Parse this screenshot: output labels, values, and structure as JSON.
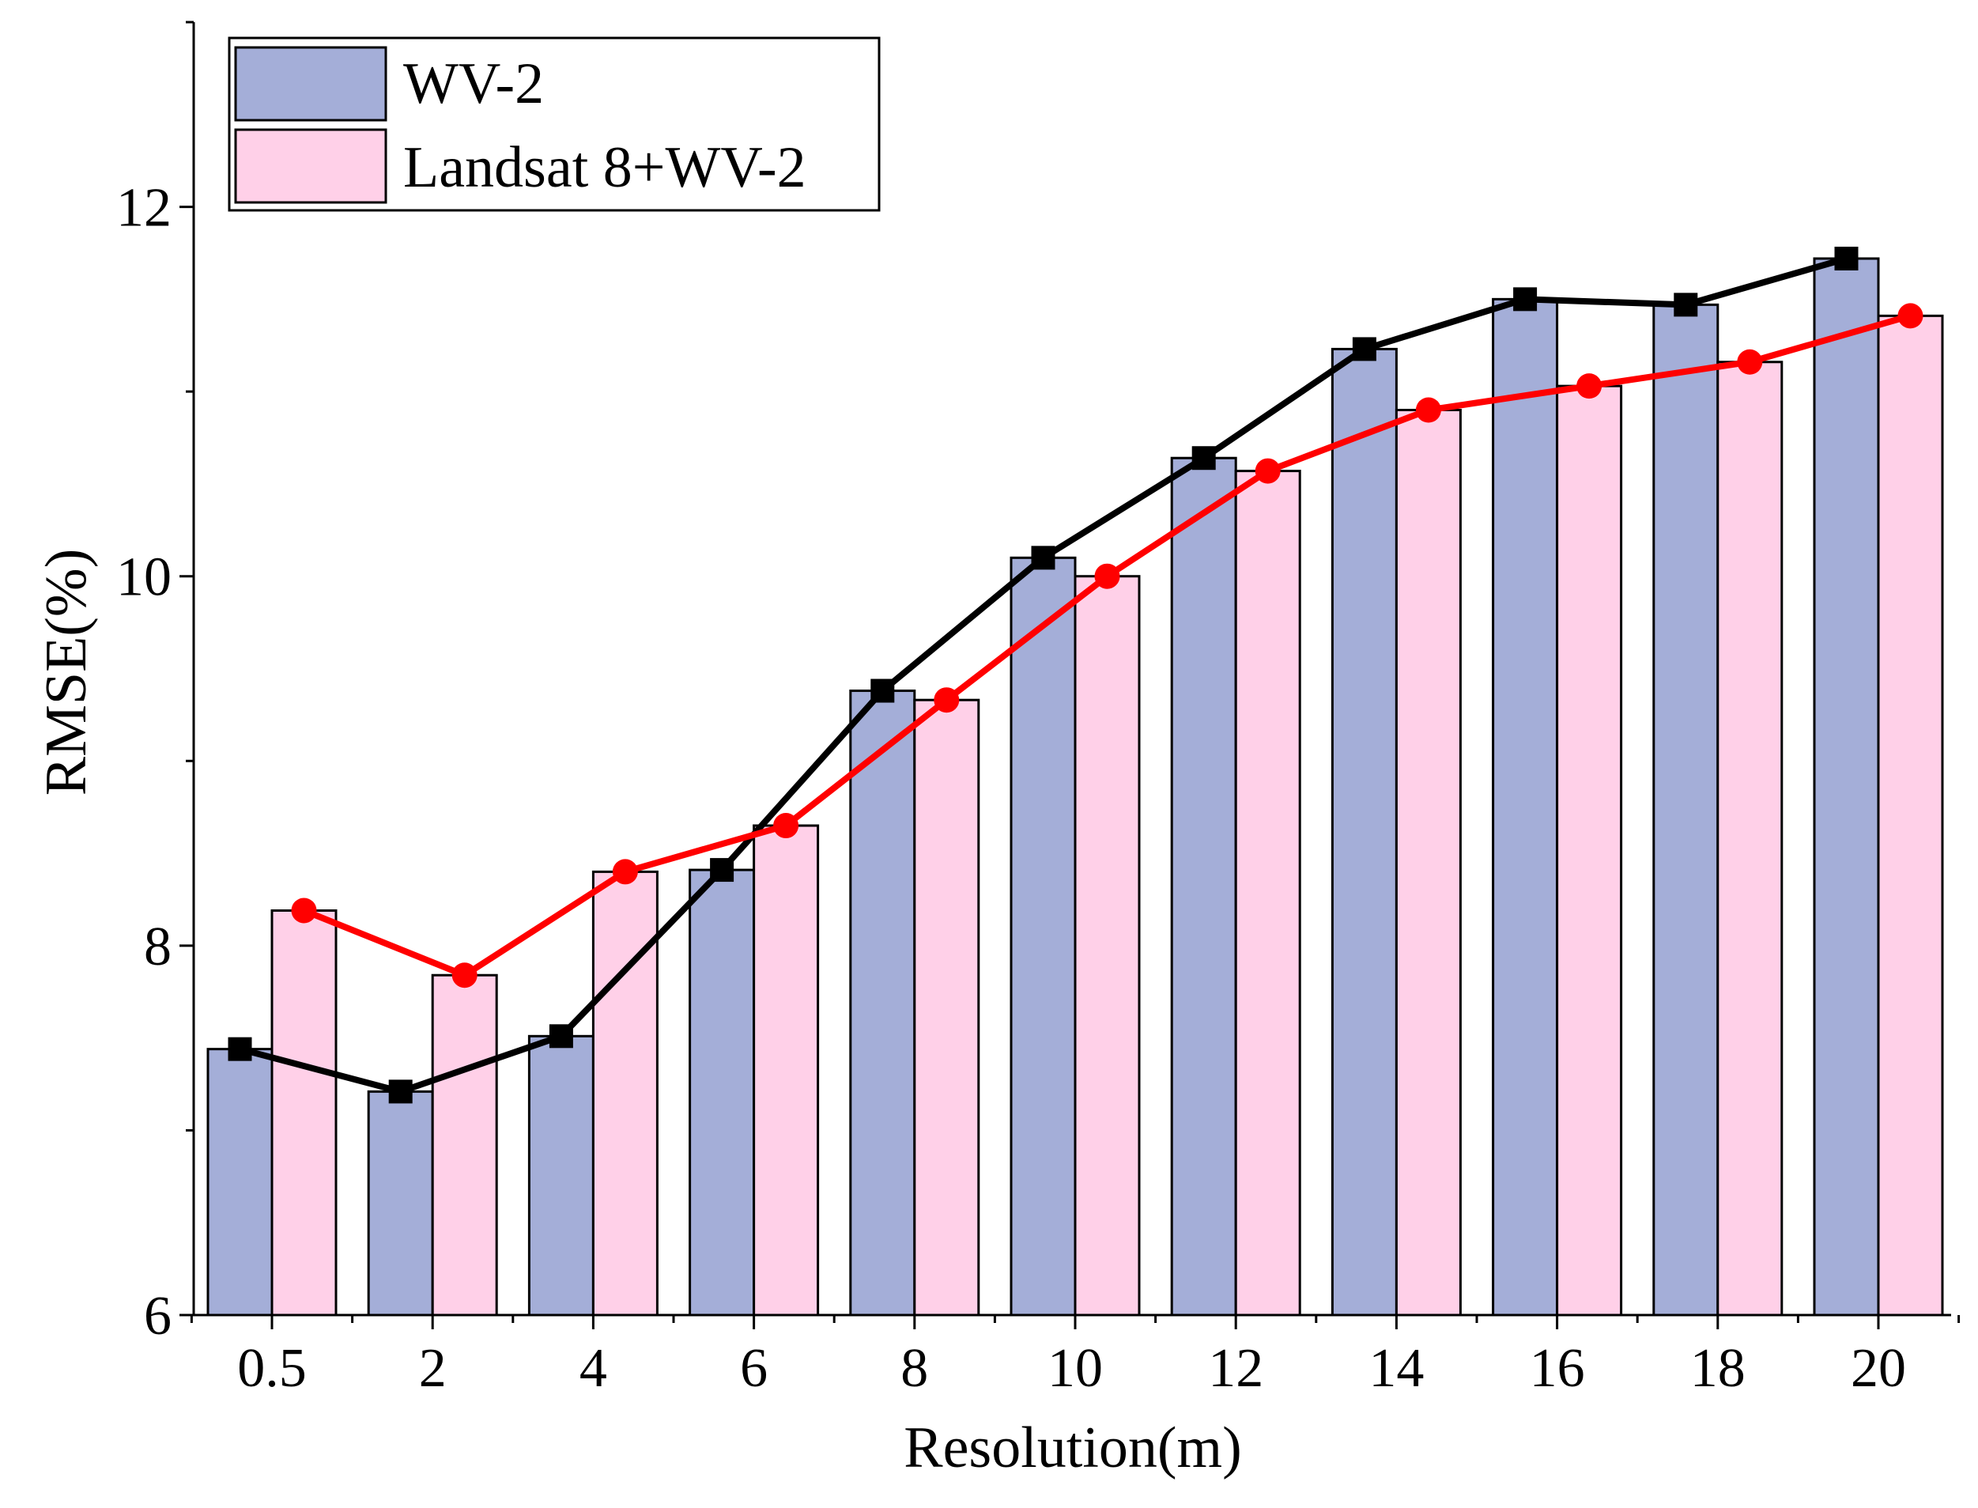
{
  "chart_data": {
    "type": "bar",
    "title": "",
    "xlabel": "Resolution(m)",
    "ylabel": "RMSE(%)",
    "categories": [
      "0.5",
      "2",
      "4",
      "6",
      "8",
      "10",
      "12",
      "14",
      "16",
      "18",
      "20"
    ],
    "ylim": [
      6,
      13
    ],
    "yticks": [
      6,
      8,
      10,
      12
    ],
    "series": [
      {
        "name": "WV-2",
        "bar_color": "#a4aed8",
        "line_color": "#000000",
        "marker": "square",
        "values": [
          7.44,
          7.21,
          7.51,
          8.41,
          9.38,
          10.1,
          10.64,
          11.23,
          11.5,
          11.47,
          11.72
        ]
      },
      {
        "name": "Landsat 8+WV-2",
        "bar_color": "#ffd0e8",
        "line_color": "#ff0000",
        "marker": "circle",
        "values": [
          8.19,
          7.84,
          8.4,
          8.65,
          9.33,
          10.0,
          10.57,
          10.9,
          11.03,
          11.16,
          11.41
        ]
      }
    ],
    "legend_position": "top-left",
    "grid": false
  }
}
